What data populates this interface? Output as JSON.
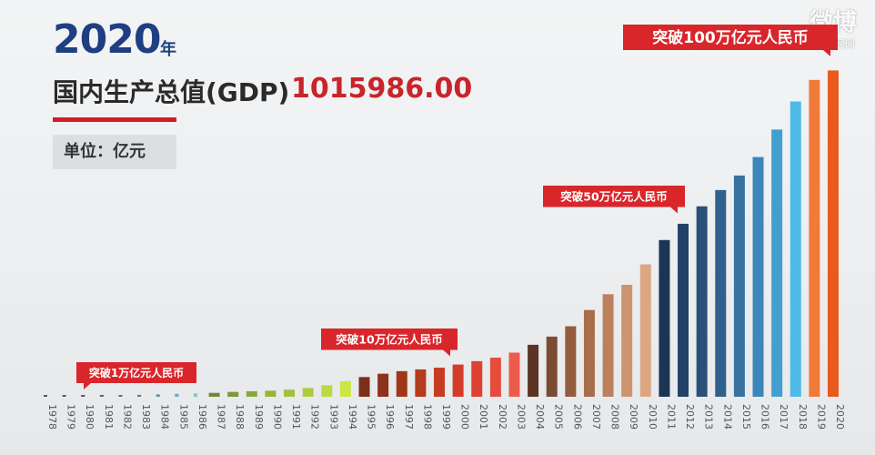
{
  "header": {
    "year": "2020",
    "year_unit": "年",
    "gdp_label": "国内生产总值(GDP)",
    "gdp_value": "1015986.00",
    "unit_label": "单位：亿元"
  },
  "watermark": {
    "brand": "微博",
    "sub": "@人民网"
  },
  "chart_data": {
    "type": "bar",
    "title": "国内生产总值(GDP)",
    "ylabel": "单位：亿元",
    "ylim": [
      0,
      1020000
    ],
    "categories": [
      "1978",
      "1979",
      "1980",
      "1981",
      "1982",
      "1983",
      "1984",
      "1985",
      "1986",
      "1987",
      "1988",
      "1989",
      "1990",
      "1991",
      "1992",
      "1993",
      "1994",
      "1995",
      "1996",
      "1997",
      "1998",
      "1999",
      "2000",
      "2001",
      "2002",
      "2003",
      "2004",
      "2005",
      "2006",
      "2007",
      "2008",
      "2009",
      "2010",
      "2011",
      "2012",
      "2013",
      "2014",
      "2015",
      "2016",
      "2017",
      "2018",
      "2019",
      "2020"
    ],
    "values": [
      3679,
      4101,
      4588,
      4936,
      5373,
      6021,
      7279,
      9099,
      10376,
      12175,
      15180,
      17180,
      18873,
      22006,
      27195,
      35673,
      48638,
      61340,
      71814,
      79715,
      85196,
      90564,
      100280,
      110863,
      121717,
      137422,
      161840,
      187319,
      219439,
      270092,
      319245,
      348518,
      412119,
      487940,
      538580,
      592963,
      643563,
      688858,
      746395,
      832036,
      919281,
      986515,
      1015986
    ],
    "colors": [
      "#4c5a78",
      "#4c5a78",
      "#4c5a78",
      "#52627f",
      "#55708a",
      "#577c96",
      "#5a8fa6",
      "#69acc6",
      "#7dc6cc",
      "#6f8a32",
      "#7c9a36",
      "#86a83a",
      "#93b53c",
      "#9fc13e",
      "#adcd41",
      "#bcd943",
      "#cde545",
      "#7c2f19",
      "#8e3319",
      "#9f381a",
      "#b23c1c",
      "#c43d22",
      "#d43c2a",
      "#de4131",
      "#e64c3c",
      "#ec5c4c",
      "#5a3525",
      "#7a4b33",
      "#935c3e",
      "#a86e4c",
      "#bb805c",
      "#cc946f",
      "#dba783",
      "#1c3553",
      "#234166",
      "#2a5079",
      "#30608c",
      "#3673a2",
      "#3b87b7",
      "#42a0cf",
      "#4dbbe5",
      "#f07a38",
      "#e85a1e"
    ],
    "annotations": [
      {
        "text": "突破1万亿元人民币",
        "category": "1986"
      },
      {
        "text": "突破10万亿元人民币",
        "category": "2000"
      },
      {
        "text": "突破50万亿元人民币",
        "category": "2012"
      },
      {
        "text": "突破100万亿元人民币",
        "category": "2020"
      }
    ]
  }
}
